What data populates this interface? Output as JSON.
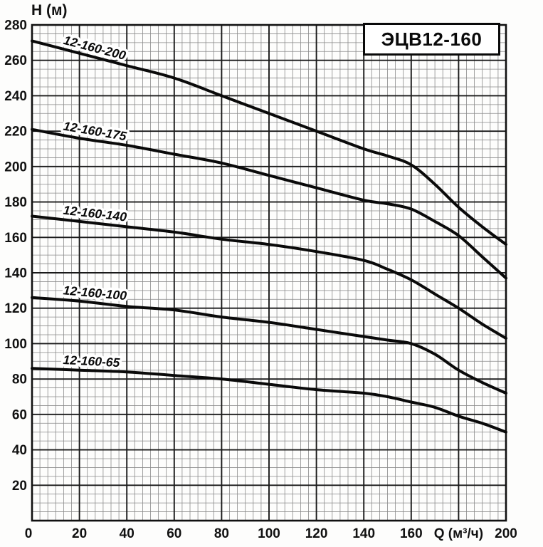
{
  "chart_data": {
    "type": "line",
    "title": "ЭЦВ12-160",
    "xlabel": "Q (м³/ч)",
    "ylabel": "Н (м)",
    "xlim": [
      0,
      200
    ],
    "ylim": [
      0,
      280
    ],
    "x_major_step": 20,
    "y_major_step": 20,
    "x_minor_per_major": 6,
    "y_minor_per_major": 4,
    "grid": "on",
    "legend_position": "labels-on-curves",
    "x_ticks": [
      0,
      20,
      40,
      60,
      80,
      100,
      120,
      140,
      160,
      200
    ],
    "xlabel_at_x": 180,
    "y_ticks": [
      20,
      40,
      60,
      80,
      100,
      120,
      140,
      160,
      180,
      200,
      220,
      240,
      260,
      280
    ],
    "series": [
      {
        "name": "12-160-200",
        "points": [
          [
            0,
            271
          ],
          [
            20,
            264
          ],
          [
            40,
            257
          ],
          [
            60,
            250
          ],
          [
            80,
            240
          ],
          [
            100,
            230
          ],
          [
            120,
            220
          ],
          [
            140,
            210
          ],
          [
            150,
            206
          ],
          [
            160,
            201
          ],
          [
            170,
            190
          ],
          [
            180,
            177
          ],
          [
            190,
            166
          ],
          [
            200,
            156
          ]
        ]
      },
      {
        "name": "12-160-175",
        "points": [
          [
            0,
            221
          ],
          [
            20,
            216
          ],
          [
            40,
            212
          ],
          [
            60,
            207
          ],
          [
            80,
            202
          ],
          [
            100,
            195
          ],
          [
            120,
            188
          ],
          [
            140,
            181
          ],
          [
            150,
            179
          ],
          [
            160,
            176
          ],
          [
            170,
            169
          ],
          [
            180,
            161
          ],
          [
            190,
            149
          ],
          [
            200,
            137
          ]
        ]
      },
      {
        "name": "12-160-140",
        "points": [
          [
            0,
            172
          ],
          [
            20,
            169
          ],
          [
            40,
            166
          ],
          [
            60,
            163
          ],
          [
            80,
            159
          ],
          [
            100,
            156
          ],
          [
            120,
            152
          ],
          [
            140,
            147
          ],
          [
            150,
            142
          ],
          [
            160,
            136
          ],
          [
            170,
            128
          ],
          [
            180,
            120
          ],
          [
            190,
            111
          ],
          [
            200,
            103
          ]
        ]
      },
      {
        "name": "12-160-100",
        "points": [
          [
            0,
            126
          ],
          [
            20,
            124
          ],
          [
            40,
            121
          ],
          [
            60,
            119
          ],
          [
            80,
            115
          ],
          [
            100,
            112
          ],
          [
            120,
            108
          ],
          [
            140,
            104
          ],
          [
            150,
            102
          ],
          [
            160,
            100
          ],
          [
            170,
            94
          ],
          [
            180,
            85
          ],
          [
            190,
            78
          ],
          [
            200,
            72
          ]
        ]
      },
      {
        "name": "12-160-65",
        "points": [
          [
            0,
            86
          ],
          [
            20,
            85
          ],
          [
            40,
            84
          ],
          [
            60,
            82
          ],
          [
            80,
            80
          ],
          [
            100,
            77
          ],
          [
            120,
            74
          ],
          [
            140,
            72
          ],
          [
            150,
            70
          ],
          [
            160,
            67
          ],
          [
            170,
            64
          ],
          [
            180,
            59
          ],
          [
            190,
            55
          ],
          [
            200,
            50
          ]
        ]
      }
    ]
  },
  "colors": {
    "curve": "#0a0a0a",
    "grid_major": "#1a1a1a",
    "grid_minor": "#8a8a8a",
    "border": "#111111",
    "text": "#111111",
    "label_halo": "#ffffff"
  }
}
